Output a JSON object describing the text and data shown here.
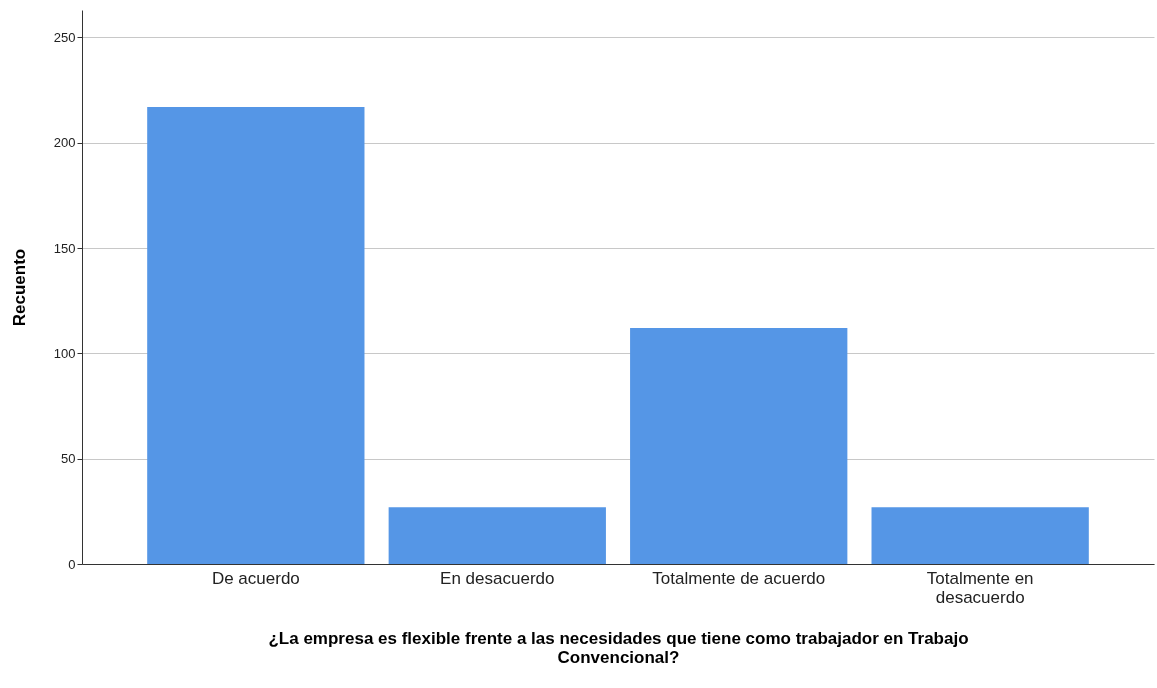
{
  "chart_data": {
    "type": "bar",
    "xlabel": "¿La empresa es flexible frente a las necesidades que tiene como trabajador en Trabajo Convencional?",
    "ylabel": "Recuento",
    "categories": [
      "De acuerdo",
      "En desacuerdo",
      "Totalmente de acuerdo",
      "Totalmente en desacuerdo"
    ],
    "values": [
      217,
      27,
      112,
      27
    ],
    "color": "#5596e6",
    "ylim": [
      0,
      263
    ],
    "yticks": [
      0,
      50,
      100,
      150,
      200,
      250
    ],
    "grid": "y"
  }
}
